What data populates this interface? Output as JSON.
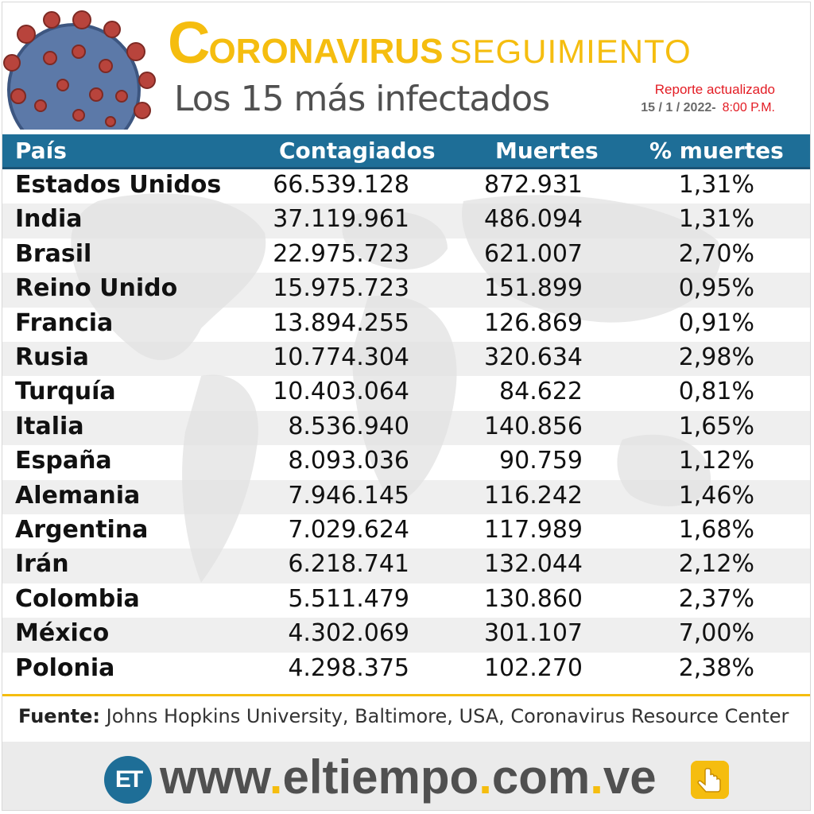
{
  "header": {
    "title_first_letter": "C",
    "title_rest": "ORONAVIRUS",
    "title_second": "SEGUIMIENTO",
    "subtitle": "Los 15 más infectados",
    "report_label": "Reporte actualizado",
    "report_date": "15 / 1 / 2022-",
    "report_time": "8:00 P.M."
  },
  "table": {
    "columns": [
      "País",
      "Contagiados",
      "Muertes",
      "% muertes"
    ],
    "rows": [
      [
        "Estados Unidos",
        "66.539.128",
        "872.931",
        "1,31%"
      ],
      [
        "India",
        "37.119.961",
        "486.094",
        "1,31%"
      ],
      [
        "Brasil",
        "22.975.723",
        "621.007",
        "2,70%"
      ],
      [
        "Reino Unido",
        "15.975.723",
        "151.899",
        "0,95%"
      ],
      [
        "Francia",
        "13.894.255",
        "126.869",
        "0,91%"
      ],
      [
        "Rusia",
        "10.774.304",
        "320.634",
        "2,98%"
      ],
      [
        "Turquía",
        "10.403.064",
        "84.622",
        "0,81%"
      ],
      [
        "Italia",
        "8.536.940",
        "140.856",
        "1,65%"
      ],
      [
        "España",
        "8.093.036",
        "90.759",
        "1,12%"
      ],
      [
        "Alemania",
        "7.946.145",
        "116.242",
        "1,46%"
      ],
      [
        "Argentina",
        "7.029.624",
        "117.989",
        "1,68%"
      ],
      [
        "Irán",
        "6.218.741",
        "132.044",
        "2,12%"
      ],
      [
        "Colombia",
        "5.511.479",
        "130.860",
        "2,37%"
      ],
      [
        "México",
        "4.302.069",
        "301.107",
        "7,00%"
      ],
      [
        "Polonia",
        "4.298.375",
        "102.270",
        "2,38%"
      ]
    ]
  },
  "source": {
    "label": "Fuente:",
    "text": "Johns Hopkins University, Baltimore, USA, Coronavirus Resource Center"
  },
  "footer": {
    "logo_text": "ET",
    "url_www": "www",
    "url_name": "eltiempo",
    "url_com": "com",
    "url_ve": "ve",
    "url_dot": "."
  },
  "colors": {
    "accent_yellow": "#f5bd0f",
    "header_blue": "#1e6e97",
    "report_red": "#e31b23"
  }
}
